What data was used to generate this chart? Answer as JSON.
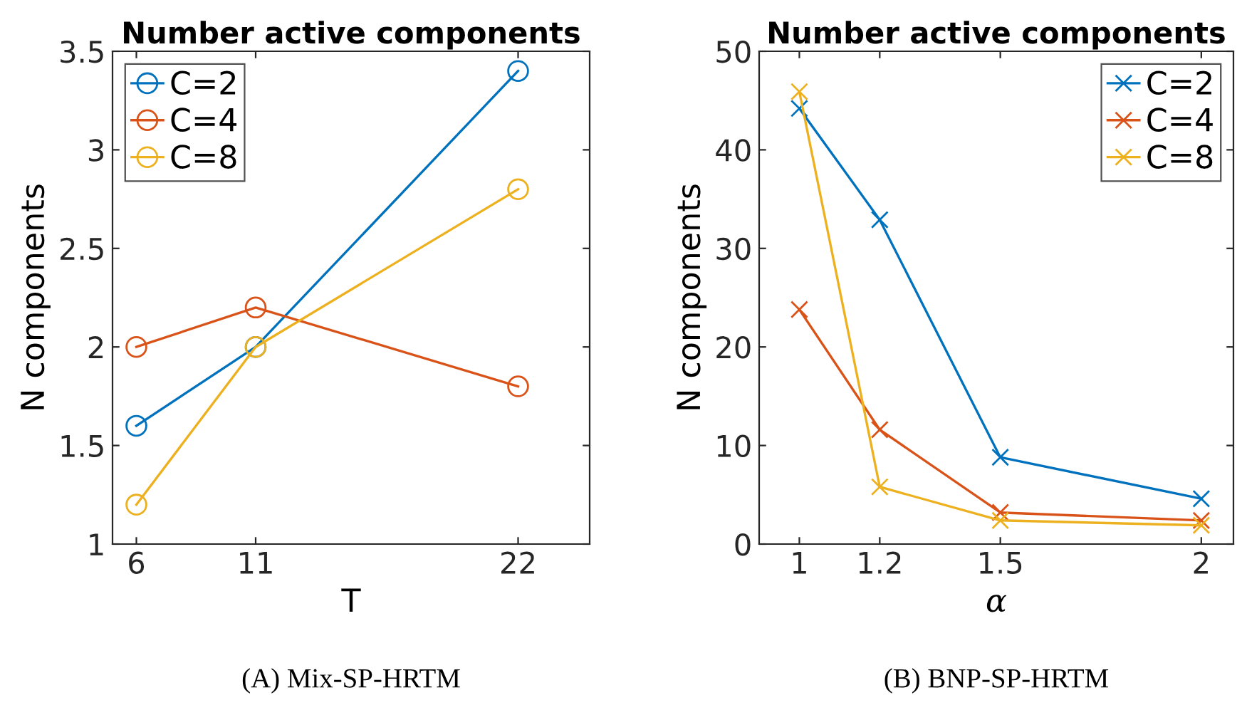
{
  "chart_data": [
    {
      "type": "line",
      "title": "Number active components",
      "xlabel": "T",
      "ylabel": "N components",
      "x": [
        6,
        11,
        22
      ],
      "xlim": [
        5,
        25
      ],
      "xticks": [
        6,
        11,
        22
      ],
      "ylim": [
        1,
        3.5
      ],
      "yticks": [
        1,
        1.5,
        2,
        2.5,
        3,
        3.5
      ],
      "marker": "circle",
      "legend": "top left",
      "grid": false,
      "series": [
        {
          "name": "C=2",
          "color": "#0072bd",
          "values": [
            1.6,
            2.0,
            3.4
          ]
        },
        {
          "name": "C=4",
          "color": "#d95319",
          "values": [
            2.0,
            2.2,
            1.8
          ]
        },
        {
          "name": "C=8",
          "color": "#edb120",
          "values": [
            1.2,
            2.0,
            2.8
          ]
        }
      ],
      "annotations": [
        "(A) Mix-SP-HRTM"
      ]
    },
    {
      "type": "line",
      "title": "Number active components",
      "xlabel": "α",
      "ylabel": "N components",
      "x": [
        1,
        1.2,
        1.5,
        2
      ],
      "xlim": [
        0.9,
        2.08
      ],
      "xticks": [
        1,
        1.2,
        1.5,
        2
      ],
      "ylim": [
        0,
        50
      ],
      "yticks": [
        0,
        10,
        20,
        30,
        40,
        50
      ],
      "marker": "cross",
      "legend": "top right",
      "grid": false,
      "series": [
        {
          "name": "C=2",
          "color": "#0072bd",
          "values": [
            44.2,
            32.9,
            8.8,
            4.6
          ]
        },
        {
          "name": "C=4",
          "color": "#d95319",
          "values": [
            23.8,
            11.6,
            3.2,
            2.4
          ]
        },
        {
          "name": "C=8",
          "color": "#edb120",
          "values": [
            45.9,
            5.8,
            2.4,
            1.9
          ]
        }
      ],
      "annotations": [
        "(B) BNP-SP-HRTM"
      ]
    }
  ]
}
